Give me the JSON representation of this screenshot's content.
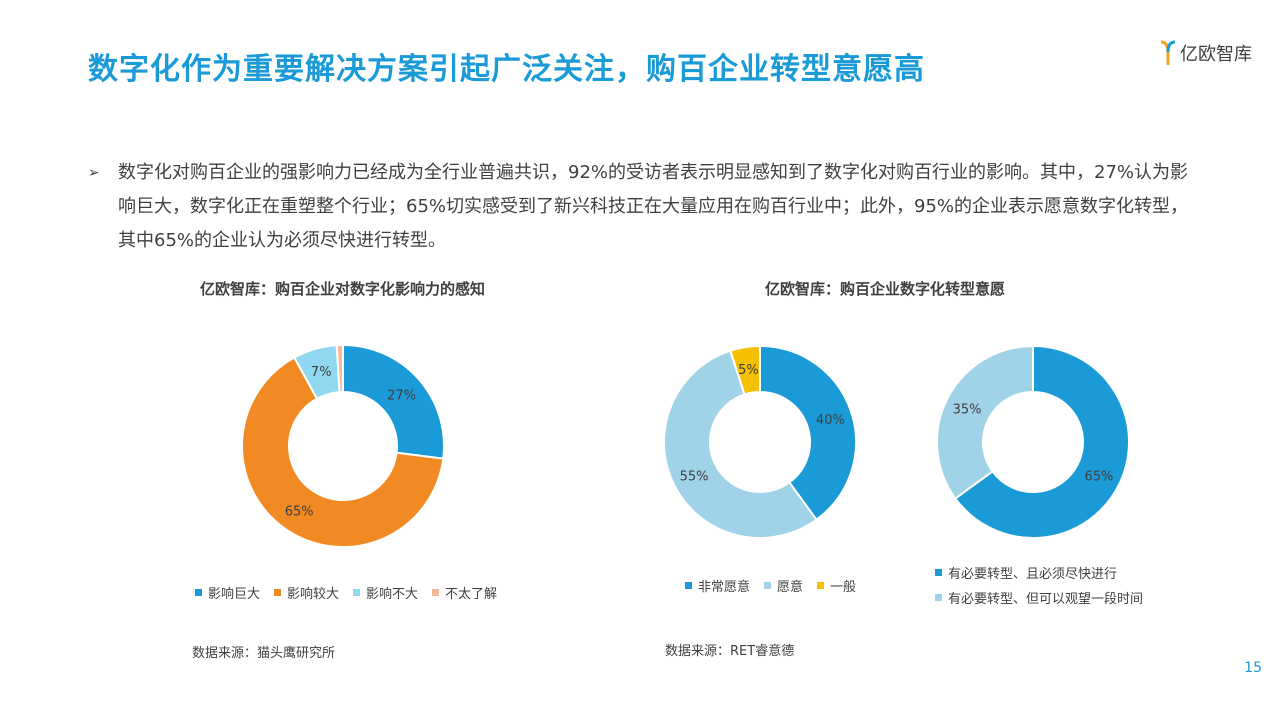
{
  "header": {
    "title": "数字化作为重要解决方案引起广泛关注，购百企业转型意愿高",
    "logo_text": "亿欧智库"
  },
  "bullet": {
    "text": "数字化对购百企业的强影响力已经成为全行业普遍共识，92%的受访者表示明显感知到了数字化对购百行业的影响。其中，27%认为影响巨大，数字化正在重塑整个行业；65%切实感受到了新兴科技正在大量应用在购百行业中；此外，95%的企业表示愿意数字化转型，其中65%的企业认为必须尽快进行转型。"
  },
  "left": {
    "title": "亿欧智库：购百企业对数字化影响力的感知",
    "source": "数据来源：猫头鹰研究所"
  },
  "right": {
    "title": "亿欧智库：购百企业数字化转型意愿",
    "source": "数据来源：RET睿意德"
  },
  "page_number": "15",
  "chart_data": [
    {
      "type": "pie",
      "title": "亿欧智库：购百企业对数字化影响力的感知",
      "categories": [
        "影响巨大",
        "影响较大",
        "影响不大",
        "不太了解"
      ],
      "values": [
        27,
        65,
        7,
        1
      ],
      "labels": [
        "27%",
        "65%",
        "7%",
        ""
      ],
      "colors": [
        "#1a9ad6",
        "#f28a24",
        "#8fd8f0",
        "#f5b99a"
      ],
      "legend": "bottom"
    },
    {
      "type": "pie",
      "categories": [
        "非常愿意",
        "愿意",
        "一般"
      ],
      "values": [
        40,
        55,
        5
      ],
      "labels": [
        "40%",
        "55%",
        "5%"
      ],
      "colors": [
        "#1a9ad6",
        "#a1d3e8",
        "#f5c000"
      ],
      "legend": "bottom"
    },
    {
      "type": "pie",
      "categories": [
        "有必要转型、且必须尽快进行",
        "有必要转型、但可以观望一段时间"
      ],
      "values": [
        65,
        35
      ],
      "labels": [
        "65%",
        "35%"
      ],
      "colors": [
        "#1a9ad6",
        "#a1d3e8"
      ],
      "legend": "bottom"
    }
  ]
}
